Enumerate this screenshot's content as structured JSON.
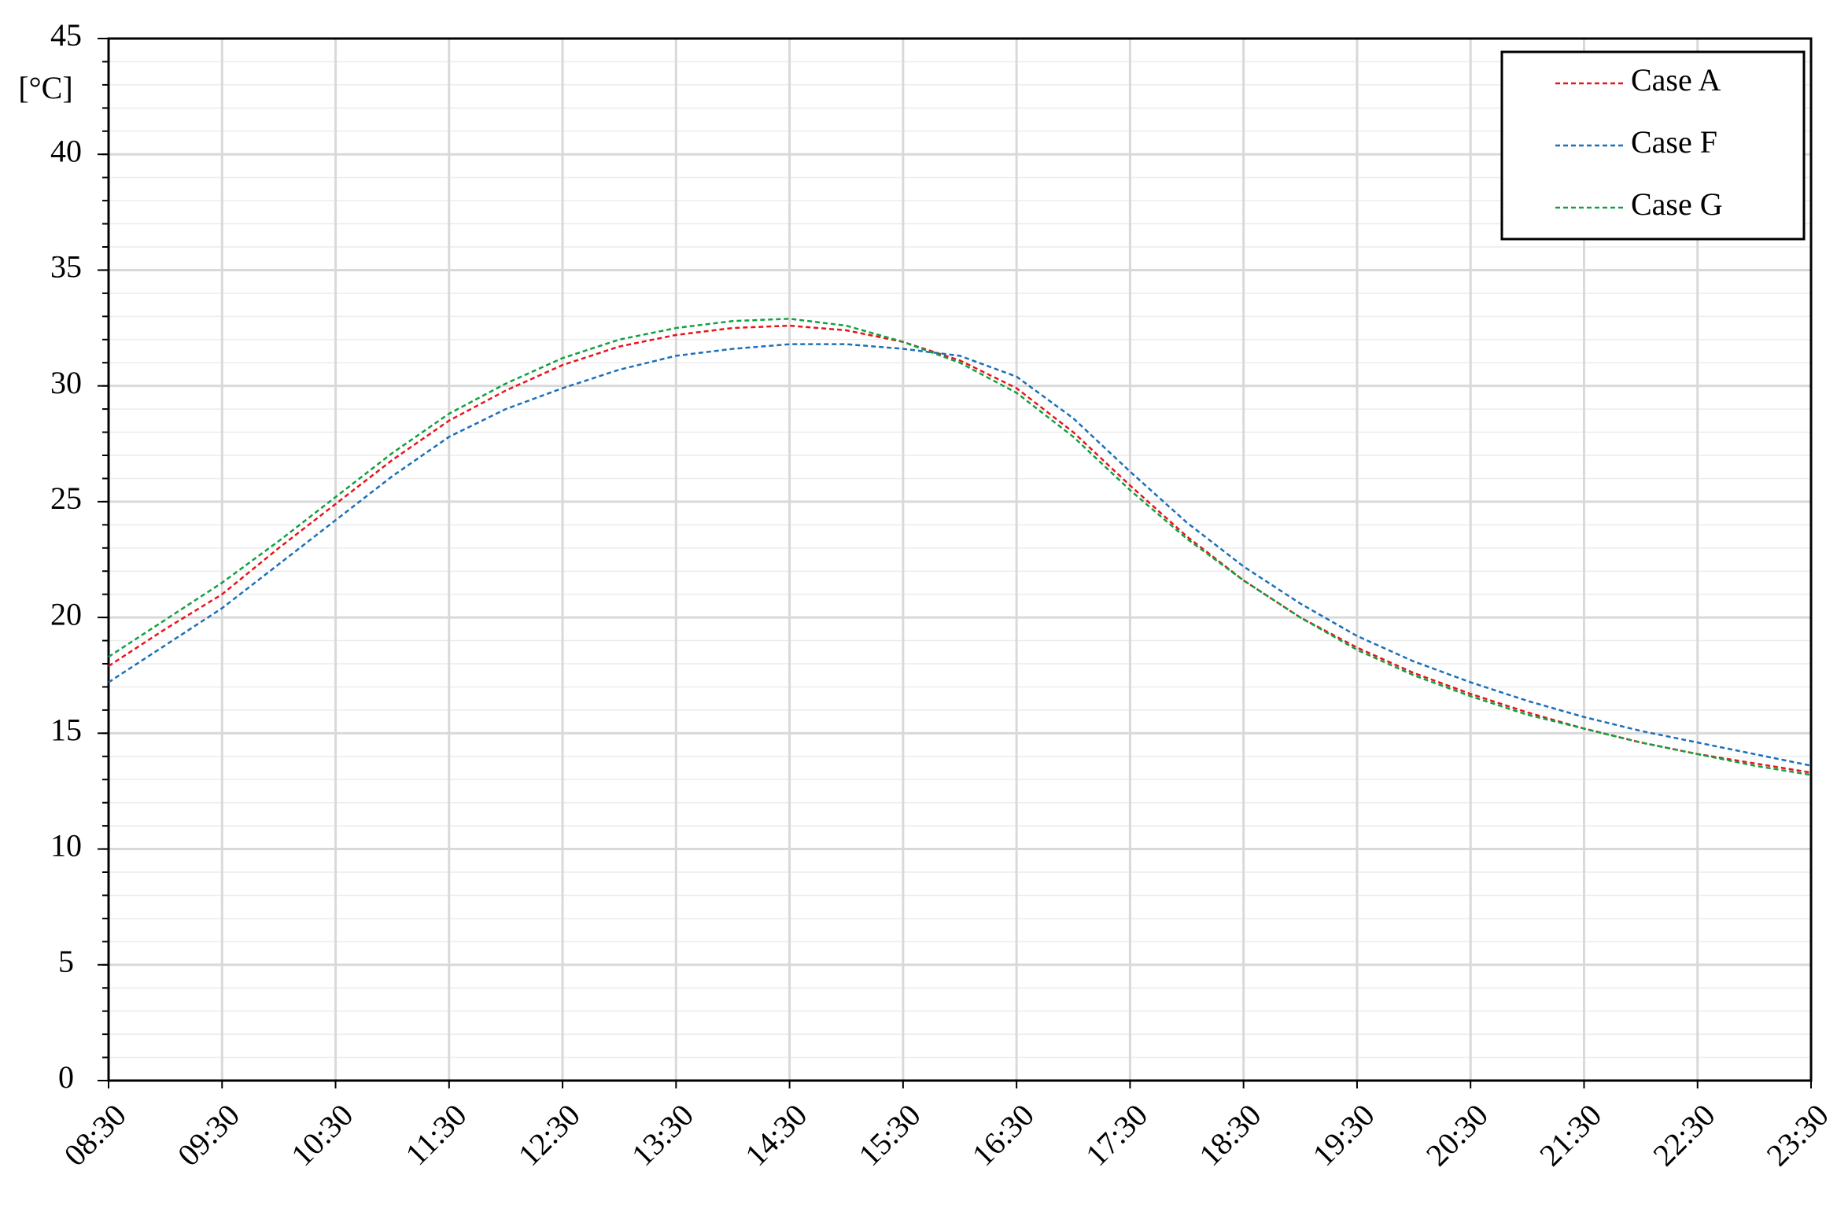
{
  "chart_data": {
    "type": "line",
    "y_label": "[°C]",
    "categories": [
      "08:30",
      null,
      "09:30",
      null,
      "10:30",
      null,
      "11:30",
      null,
      "12:30",
      null,
      "13:30",
      null,
      "14:30",
      null,
      "15:30",
      null,
      "16:30",
      null,
      "17:30",
      null,
      "18:30",
      null,
      "19:30",
      null,
      "20:30",
      null,
      "21:30",
      null,
      "22:30",
      null,
      "23:30"
    ],
    "series": [
      {
        "name": "Case A",
        "color": "#e8141c",
        "values": [
          17.9,
          19.5,
          21.0,
          23.0,
          24.9,
          26.8,
          28.5,
          29.8,
          30.9,
          31.7,
          32.2,
          32.5,
          32.6,
          32.4,
          31.9,
          31.1,
          29.9,
          28.0,
          25.7,
          23.5,
          21.6,
          20.0,
          18.7,
          17.6,
          16.7,
          15.9,
          15.2,
          14.6,
          14.1,
          13.7,
          13.3
        ]
      },
      {
        "name": "Case F",
        "color": "#1c6fb8",
        "values": [
          17.2,
          18.8,
          20.4,
          22.3,
          24.2,
          26.1,
          27.8,
          29.0,
          29.9,
          30.7,
          31.3,
          31.6,
          31.8,
          31.8,
          31.6,
          31.3,
          30.4,
          28.6,
          26.3,
          24.1,
          22.2,
          20.6,
          19.2,
          18.1,
          17.2,
          16.4,
          15.7,
          15.1,
          14.6,
          14.1,
          13.6
        ]
      },
      {
        "name": "Case G",
        "color": "#12a040",
        "values": [
          18.3,
          19.9,
          21.5,
          23.3,
          25.2,
          27.1,
          28.8,
          30.1,
          31.2,
          32.0,
          32.5,
          32.8,
          32.9,
          32.6,
          31.9,
          31.0,
          29.7,
          27.8,
          25.5,
          23.4,
          21.6,
          20.0,
          18.6,
          17.5,
          16.6,
          15.8,
          15.2,
          14.6,
          14.1,
          13.6,
          13.2
        ]
      }
    ],
    "ylim": [
      0,
      45
    ],
    "yticks": [
      0,
      5,
      10,
      15,
      20,
      25,
      30,
      35,
      40,
      45
    ],
    "yminorticks": [
      0,
      1,
      2,
      3,
      4,
      5,
      6,
      7,
      8,
      9,
      10,
      11,
      12,
      13,
      14,
      15,
      16,
      17,
      18,
      19,
      20,
      21,
      22,
      23,
      24,
      25,
      26,
      27,
      28,
      29,
      30,
      31,
      32,
      33,
      34,
      35,
      36,
      37,
      38,
      39,
      40,
      41,
      42,
      43,
      44,
      45
    ],
    "grid": true,
    "legend": "top-right"
  }
}
